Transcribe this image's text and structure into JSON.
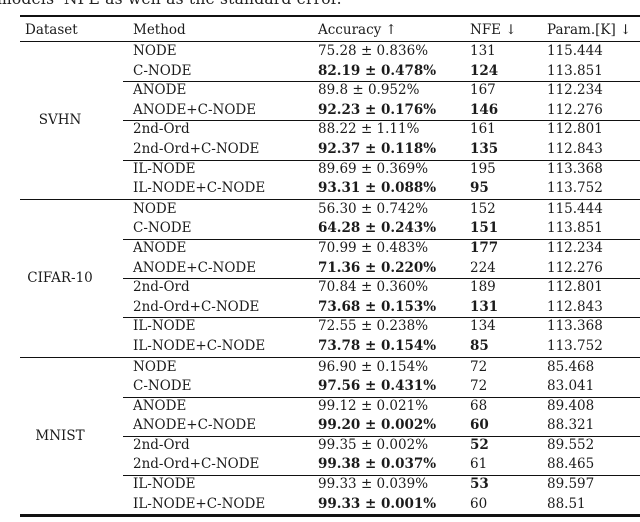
{
  "caption_fragment": "models' NFE as well as the standard error.",
  "colors": {
    "background": "#ffffff",
    "text": "#1b1b1b",
    "rule": "#111111"
  },
  "table": {
    "headers": [
      "Dataset",
      "Method",
      "Accuracy ↑",
      "NFE ↓",
      "Param.[K] ↓"
    ],
    "groups": [
      {
        "dataset": "SVHN",
        "rows": [
          {
            "method": "NODE",
            "accuracy": "75.28 ± 0.836%",
            "accuracy_bold": false,
            "nfe": "131",
            "nfe_bold": false,
            "param": "115.444"
          },
          {
            "method": "C-NODE",
            "accuracy": "82.19 ± 0.478%",
            "accuracy_bold": true,
            "nfe": "124",
            "nfe_bold": true,
            "param": "113.851"
          },
          {
            "method": "ANODE",
            "accuracy": "89.8 ± 0.952%",
            "accuracy_bold": false,
            "nfe": "167",
            "nfe_bold": false,
            "param": "112.234"
          },
          {
            "method": "ANODE+C-NODE",
            "accuracy": "92.23 ± 0.176%",
            "accuracy_bold": true,
            "nfe": "146",
            "nfe_bold": true,
            "param": "112.276"
          },
          {
            "method": "2nd-Ord",
            "accuracy": "88.22 ± 1.11%",
            "accuracy_bold": false,
            "nfe": "161",
            "nfe_bold": false,
            "param": "112.801"
          },
          {
            "method": "2nd-Ord+C-NODE",
            "accuracy": "92.37 ± 0.118%",
            "accuracy_bold": true,
            "nfe": "135",
            "nfe_bold": true,
            "param": "112.843"
          },
          {
            "method": "IL-NODE",
            "accuracy": "89.69 ± 0.369%",
            "accuracy_bold": false,
            "nfe": "195",
            "nfe_bold": false,
            "param": "113.368"
          },
          {
            "method": "IL-NODE+C-NODE",
            "accuracy": "93.31 ± 0.088%",
            "accuracy_bold": true,
            "nfe": "95",
            "nfe_bold": true,
            "param": "113.752"
          }
        ]
      },
      {
        "dataset": "CIFAR-10",
        "rows": [
          {
            "method": "NODE",
            "accuracy": "56.30 ± 0.742%",
            "accuracy_bold": false,
            "nfe": "152",
            "nfe_bold": false,
            "param": "115.444"
          },
          {
            "method": "C-NODE",
            "accuracy": "64.28 ± 0.243%",
            "accuracy_bold": true,
            "nfe": "151",
            "nfe_bold": true,
            "param": "113.851"
          },
          {
            "method": "ANODE",
            "accuracy": "70.99 ± 0.483%",
            "accuracy_bold": false,
            "nfe": "177",
            "nfe_bold": true,
            "param": "112.234"
          },
          {
            "method": "ANODE+C-NODE",
            "accuracy": "71.36 ± 0.220%",
            "accuracy_bold": true,
            "nfe": "224",
            "nfe_bold": false,
            "param": "112.276"
          },
          {
            "method": "2nd-Ord",
            "accuracy": "70.84 ± 0.360%",
            "accuracy_bold": false,
            "nfe": "189",
            "nfe_bold": false,
            "param": "112.801"
          },
          {
            "method": "2nd-Ord+C-NODE",
            "accuracy": "73.68 ± 0.153%",
            "accuracy_bold": true,
            "nfe": "131",
            "nfe_bold": true,
            "param": "112.843"
          },
          {
            "method": "IL-NODE",
            "accuracy": "72.55 ± 0.238%",
            "accuracy_bold": false,
            "nfe": "134",
            "nfe_bold": false,
            "param": "113.368"
          },
          {
            "method": "IL-NODE+C-NODE",
            "accuracy": "73.78 ± 0.154%",
            "accuracy_bold": true,
            "nfe": "85",
            "nfe_bold": true,
            "param": "113.752"
          }
        ]
      },
      {
        "dataset": "MNIST",
        "rows": [
          {
            "method": "NODE",
            "accuracy": "96.90 ± 0.154%",
            "accuracy_bold": false,
            "nfe": "72",
            "nfe_bold": false,
            "param": "85.468"
          },
          {
            "method": "C-NODE",
            "accuracy": "97.56 ± 0.431%",
            "accuracy_bold": true,
            "nfe": "72",
            "nfe_bold": false,
            "param": "83.041"
          },
          {
            "method": "ANODE",
            "accuracy": "99.12 ± 0.021%",
            "accuracy_bold": false,
            "nfe": "68",
            "nfe_bold": false,
            "param": "89.408"
          },
          {
            "method": "ANODE+C-NODE",
            "accuracy": "99.20 ± 0.002%",
            "accuracy_bold": true,
            "nfe": "60",
            "nfe_bold": true,
            "param": "88.321"
          },
          {
            "method": "2nd-Ord",
            "accuracy": "99.35 ± 0.002%",
            "accuracy_bold": false,
            "nfe": "52",
            "nfe_bold": true,
            "param": "89.552"
          },
          {
            "method": "2nd-Ord+C-NODE",
            "accuracy": "99.38 ± 0.037%",
            "accuracy_bold": true,
            "nfe": "61",
            "nfe_bold": false,
            "param": "88.465"
          },
          {
            "method": "IL-NODE",
            "accuracy": "99.33 ± 0.039%",
            "accuracy_bold": false,
            "nfe": "53",
            "nfe_bold": true,
            "param": "89.597"
          },
          {
            "method": "IL-NODE+C-NODE",
            "accuracy": "99.33 ± 0.001%",
            "accuracy_bold": true,
            "nfe": "60",
            "nfe_bold": false,
            "param": "88.51"
          }
        ]
      }
    ]
  }
}
